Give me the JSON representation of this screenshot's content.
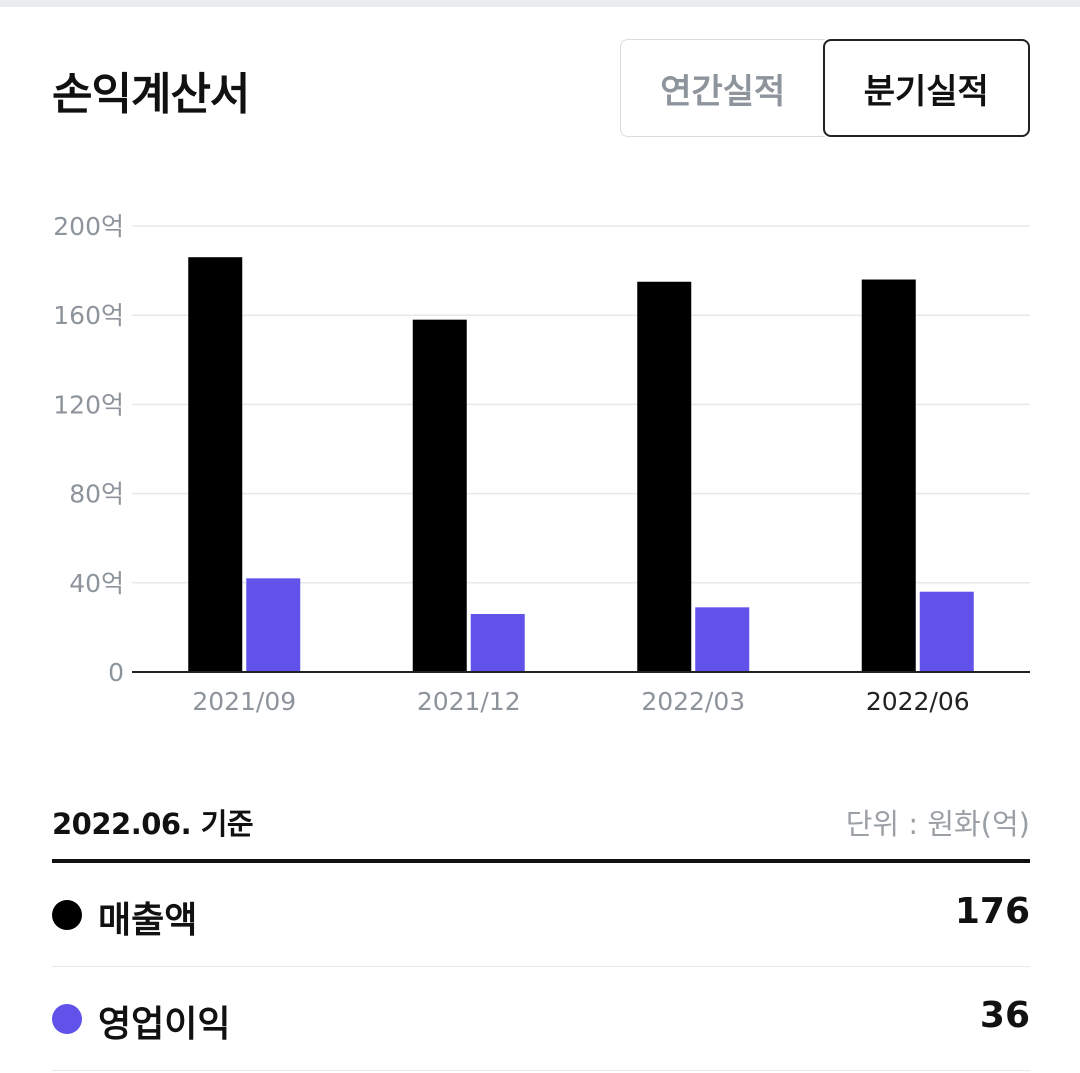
{
  "colors": {
    "revenue": "#000000",
    "operating_profit": "#6153ea",
    "grid": "#e6e8eb",
    "axis": "#222222",
    "muted_text": "#8e949c"
  },
  "page": {
    "title": "손익계산서"
  },
  "toggle": {
    "annual_label": "연간실적",
    "quarterly_label": "분기실적",
    "selected": "quarterly"
  },
  "chart_data": {
    "type": "bar",
    "categories": [
      "2021/09",
      "2021/12",
      "2022/03",
      "2022/06"
    ],
    "highlight_category": "2022/06",
    "series": [
      {
        "name": "매출액",
        "values": [
          186,
          158,
          175,
          176
        ]
      },
      {
        "name": "영업이익",
        "values": [
          42,
          26,
          29,
          36
        ]
      }
    ],
    "ylim": [
      0,
      200
    ],
    "yticks": [
      0,
      40,
      80,
      120,
      160,
      200
    ],
    "ytick_labels": [
      "0",
      "40억",
      "80억",
      "120억",
      "160억",
      "200억"
    ],
    "grid": true,
    "legend": "none"
  },
  "summary": {
    "basis_date": "2022.06. 기준",
    "unit": "단위 : 원화(억)",
    "metrics": [
      {
        "name": "매출액",
        "value": "176"
      },
      {
        "name": "영업이익",
        "value": "36"
      }
    ]
  }
}
